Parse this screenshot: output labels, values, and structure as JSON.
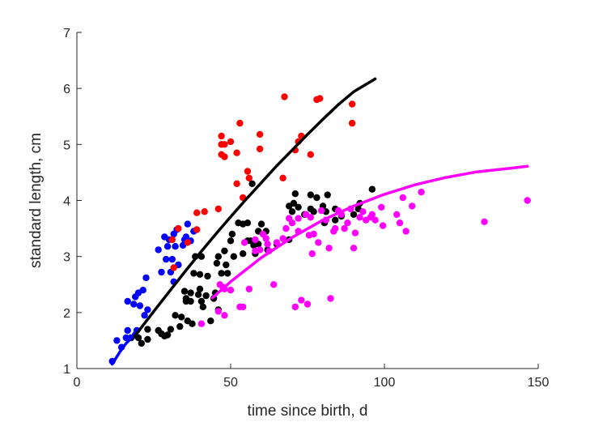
{
  "chart_data": {
    "type": "scatter",
    "title": "",
    "xlabel": "time since birth, d",
    "ylabel": "standard length, cm",
    "xlim": [
      0,
      150
    ],
    "ylim": [
      1,
      7
    ],
    "xticks": [
      0,
      50,
      100,
      150
    ],
    "yticks": [
      1,
      2,
      3,
      4,
      5,
      6,
      7
    ],
    "grid": false,
    "legend": "none",
    "series": [
      {
        "color": "#0000ff",
        "points": [
          [
            11.5,
            1.13
          ],
          [
            13,
            1.5
          ],
          [
            14.5,
            1.38
          ],
          [
            16,
            1.55
          ],
          [
            16.5,
            1.68
          ],
          [
            17.5,
            1.55
          ],
          [
            19,
            1.6
          ],
          [
            19.5,
            1.68
          ],
          [
            16.5,
            2.2
          ],
          [
            18.5,
            2.15
          ],
          [
            19,
            2.28
          ],
          [
            20,
            2.35
          ],
          [
            20.5,
            2.12
          ],
          [
            21.5,
            2.4
          ],
          [
            22,
            1.95
          ],
          [
            22.5,
            2.62
          ],
          [
            23,
            2.05
          ],
          [
            26.5,
            3.12
          ],
          [
            27.5,
            2.72
          ],
          [
            28.5,
            3.35
          ],
          [
            29,
            2.95
          ],
          [
            29.5,
            3.18
          ],
          [
            30.5,
            2.72
          ],
          [
            31,
            2.95
          ],
          [
            31.5,
            3.4
          ],
          [
            32,
            3.18
          ],
          [
            32.5,
            3.48
          ],
          [
            34.5,
            3.2
          ],
          [
            35,
            3.3
          ],
          [
            35.5,
            3.35
          ],
          [
            36,
            3.58
          ],
          [
            37,
            3.28
          ],
          [
            38,
            3.45
          ],
          [
            33,
            2.85
          ],
          [
            30,
            3.3
          ],
          [
            31.5,
            2.55
          ]
        ]
      },
      {
        "color": "#ff0000",
        "points": [
          [
            31.5,
            2.8
          ],
          [
            31,
            3.3
          ],
          [
            33,
            3.5
          ],
          [
            36,
            3.25
          ],
          [
            39,
            3.48
          ],
          [
            39,
            3.78
          ],
          [
            41.5,
            3.8
          ],
          [
            46,
            3.85
          ],
          [
            47,
            4.82
          ],
          [
            47,
            5.0
          ],
          [
            47,
            5.15
          ],
          [
            48,
            4.78
          ],
          [
            48,
            5.0
          ],
          [
            50,
            5.05
          ],
          [
            52,
            4.3
          ],
          [
            52,
            4.85
          ],
          [
            53,
            5.38
          ],
          [
            54,
            4.05
          ],
          [
            55.5,
            4.52
          ],
          [
            56,
            4.4
          ],
          [
            59.5,
            4.92
          ],
          [
            59.5,
            5.18
          ],
          [
            67,
            4.4
          ],
          [
            67.5,
            5.85
          ],
          [
            71,
            4.9
          ],
          [
            72,
            5.05
          ],
          [
            73,
            5.15
          ],
          [
            76,
            4.82
          ],
          [
            78,
            5.8
          ],
          [
            79,
            5.82
          ],
          [
            89.5,
            5.72
          ],
          [
            89.5,
            5.38
          ]
        ]
      },
      {
        "color": "#000000",
        "points": [
          [
            20,
            1.55
          ],
          [
            21,
            1.45
          ],
          [
            23,
            1.7
          ],
          [
            23,
            1.52
          ],
          [
            26.5,
            1.68
          ],
          [
            27.5,
            1.62
          ],
          [
            28.5,
            1.58
          ],
          [
            29.5,
            1.6
          ],
          [
            30.5,
            1.7
          ],
          [
            32,
            1.95
          ],
          [
            33.5,
            1.75
          ],
          [
            34,
            1.92
          ],
          [
            35,
            2.38
          ],
          [
            35.5,
            2.2
          ],
          [
            35.5,
            2.25
          ],
          [
            36,
            1.85
          ],
          [
            37,
            2.2
          ],
          [
            37,
            2.35
          ],
          [
            37.5,
            1.8
          ],
          [
            38,
            2.7
          ],
          [
            38.5,
            3.0
          ],
          [
            39.5,
            2.32
          ],
          [
            40,
            2.42
          ],
          [
            40,
            2.68
          ],
          [
            40.5,
            3.0
          ],
          [
            40.5,
            2.2
          ],
          [
            41,
            2.1
          ],
          [
            42,
            2.3
          ],
          [
            42.5,
            2.65
          ],
          [
            43.5,
            1.85
          ],
          [
            44.5,
            2.25
          ],
          [
            45,
            2.35
          ],
          [
            45.5,
            2.88
          ],
          [
            46,
            3.0
          ],
          [
            46,
            2.05
          ],
          [
            47,
            2.7
          ],
          [
            48,
            3.1
          ],
          [
            48.5,
            2.85
          ],
          [
            49,
            2.7
          ],
          [
            50,
            3.28
          ],
          [
            50.5,
            3.4
          ],
          [
            51,
            3.0
          ],
          [
            52.5,
            3.6
          ],
          [
            54,
            3.58
          ],
          [
            54,
            3.05
          ],
          [
            55.5,
            3.6
          ],
          [
            55.5,
            3.28
          ],
          [
            56.5,
            3.28
          ],
          [
            57,
            4.3
          ],
          [
            57.5,
            3.2
          ],
          [
            58,
            3.05
          ],
          [
            59,
            3.45
          ],
          [
            59,
            3.22
          ],
          [
            60,
            3.58
          ],
          [
            61.5,
            3.45
          ],
          [
            62,
            3.12
          ],
          [
            65,
            3.22
          ],
          [
            69,
            3.3
          ],
          [
            69,
            3.9
          ],
          [
            70,
            3.8
          ],
          [
            70.5,
            3.95
          ],
          [
            71,
            4.12
          ],
          [
            72,
            3.88
          ],
          [
            74,
            3.75
          ],
          [
            76,
            4.1
          ],
          [
            76,
            3.85
          ],
          [
            77,
            3.8
          ],
          [
            78,
            4.05
          ],
          [
            80,
            3.9
          ],
          [
            81,
            3.8
          ],
          [
            80.5,
            3.6
          ],
          [
            81.5,
            4.1
          ],
          [
            84,
            3.85
          ],
          [
            84,
            3.65
          ],
          [
            86,
            3.72
          ],
          [
            90,
            3.75
          ],
          [
            91.5,
            3.85
          ],
          [
            92,
            3.95
          ],
          [
            96,
            4.2
          ]
        ]
      },
      {
        "color": "#ff00ff",
        "points": [
          [
            40.5,
            1.8
          ],
          [
            46.5,
            2.5
          ],
          [
            46,
            2.02
          ],
          [
            47.5,
            2.45
          ],
          [
            48,
            1.95
          ],
          [
            48,
            2.42
          ],
          [
            50,
            2.4
          ],
          [
            53,
            2.1
          ],
          [
            54,
            2.1
          ],
          [
            54.5,
            3.25
          ],
          [
            56,
            2.42
          ],
          [
            58,
            3.3
          ],
          [
            59.5,
            3.12
          ],
          [
            60.5,
            3.4
          ],
          [
            61.5,
            3.32
          ],
          [
            62,
            3.22
          ],
          [
            62.5,
            3.1
          ],
          [
            64,
            2.5
          ],
          [
            65,
            3.25
          ],
          [
            67,
            3.32
          ],
          [
            68,
            3.5
          ],
          [
            69,
            3.68
          ],
          [
            70,
            3.6
          ],
          [
            71,
            2.1
          ],
          [
            72,
            3.45
          ],
          [
            72,
            3.68
          ],
          [
            73,
            2.22
          ],
          [
            74.5,
            3.75
          ],
          [
            75,
            2.15
          ],
          [
            75.5,
            3.38
          ],
          [
            76,
            3.7
          ],
          [
            76.5,
            3.05
          ],
          [
            77,
            3.4
          ],
          [
            78.5,
            3.25
          ],
          [
            79.5,
            3.82
          ],
          [
            81,
            3.65
          ],
          [
            82,
            3.15
          ],
          [
            82.5,
            2.25
          ],
          [
            83.5,
            3.45
          ],
          [
            85,
            3.82
          ],
          [
            86,
            3.75
          ],
          [
            87,
            3.5
          ],
          [
            88,
            3.6
          ],
          [
            89,
            3.85
          ],
          [
            90,
            3.15
          ],
          [
            90.5,
            3.42
          ],
          [
            92,
            3.7
          ],
          [
            93,
            3.8
          ],
          [
            94,
            3.65
          ],
          [
            96,
            3.75
          ],
          [
            97,
            3.65
          ],
          [
            99,
            3.88
          ],
          [
            99.5,
            3.55
          ],
          [
            104,
            3.75
          ],
          [
            105,
            3.6
          ],
          [
            106,
            4.05
          ],
          [
            107,
            3.45
          ],
          [
            109,
            3.9
          ],
          [
            112,
            4.15
          ],
          [
            132.5,
            3.62
          ],
          [
            146.5,
            4.0
          ],
          [
            84,
            3.5
          ],
          [
            95.5,
            3.7
          ],
          [
            58,
            3.1
          ]
        ]
      }
    ],
    "fit_lines": [
      {
        "color": "#000000",
        "points": [
          [
            18,
            1.52
          ],
          [
            25,
            2.02
          ],
          [
            30,
            2.37
          ],
          [
            35,
            2.72
          ],
          [
            40,
            3.06
          ],
          [
            45,
            3.39
          ],
          [
            50,
            3.71
          ],
          [
            55,
            4.02
          ],
          [
            60,
            4.32
          ],
          [
            65,
            4.62
          ],
          [
            70,
            4.9
          ],
          [
            75,
            5.18
          ],
          [
            80,
            5.45
          ],
          [
            85,
            5.71
          ],
          [
            90,
            5.94
          ],
          [
            97,
            6.17
          ]
        ]
      },
      {
        "color": "#0000ff",
        "points": [
          [
            11.5,
            1.08
          ],
          [
            14,
            1.3
          ],
          [
            16,
            1.45
          ],
          [
            18,
            1.56
          ]
        ]
      },
      {
        "color": "#ff00ff",
        "points": [
          [
            44,
            2.26
          ],
          [
            50,
            2.55
          ],
          [
            60,
            2.98
          ],
          [
            70,
            3.34
          ],
          [
            80,
            3.65
          ],
          [
            90,
            3.9
          ],
          [
            100,
            4.11
          ],
          [
            110,
            4.28
          ],
          [
            120,
            4.41
          ],
          [
            130,
            4.51
          ],
          [
            140,
            4.57
          ],
          [
            146.5,
            4.61
          ]
        ]
      }
    ]
  }
}
